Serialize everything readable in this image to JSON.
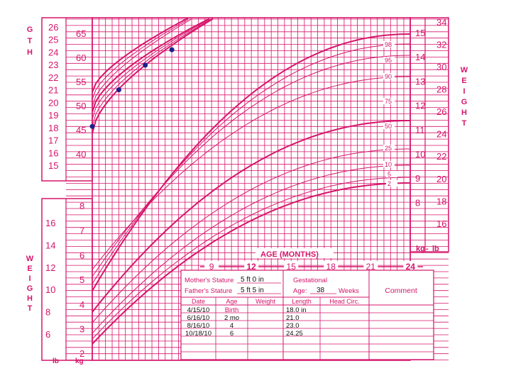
{
  "chart_data": {
    "type": "line",
    "title": "",
    "colors": {
      "ink": "#d6156b",
      "grid": "#d6156b",
      "points": "#1d1f8c",
      "bg": "#ffffff"
    },
    "left_axis_labels": {
      "length_side_letters": [
        "G",
        "T",
        "H"
      ],
      "weight_side_letters": [
        "W",
        "E",
        "I",
        "G",
        "H",
        "T"
      ],
      "lb": "lb",
      "kg": "kg"
    },
    "right_axis_labels": {
      "weight_letters": [
        "W",
        "E",
        "I",
        "G",
        "H",
        "T"
      ],
      "kg": "kg",
      "lb": "lb"
    },
    "x_axis": {
      "label": "AGE (MONTHS)",
      "ticks": [
        "9",
        "12",
        "15",
        "18",
        "21",
        "24"
      ]
    },
    "length_cm": {
      "inner_ticks": [
        "65",
        "60",
        "55",
        "50",
        "45",
        "40"
      ],
      "inch_ticks": [
        "26",
        "25",
        "24",
        "23",
        "22",
        "21",
        "20",
        "19",
        "18",
        "17",
        "16",
        "15"
      ],
      "points": [
        {
          "age_months": 0,
          "length_cm": 45.7
        },
        {
          "age_months": 2,
          "length_cm": 53.3
        },
        {
          "age_months": 4,
          "length_cm": 58.4
        },
        {
          "age_months": 6,
          "length_cm": 61.6
        }
      ]
    },
    "weight_left": {
      "kg_ticks": [
        "8",
        "7",
        "6",
        "5",
        "4",
        "3",
        "2"
      ],
      "lb_ticks": [
        "16",
        "14",
        "12",
        "10",
        "8",
        "6"
      ]
    },
    "weight_right": {
      "kg_ticks": [
        "15",
        "14",
        "13",
        "12",
        "11",
        "10",
        "9",
        "8"
      ],
      "lb_ticks": [
        "34",
        "32",
        "30",
        "28",
        "26",
        "24",
        "22",
        "20",
        "18",
        "16"
      ]
    },
    "percentiles": [
      "98",
      "95",
      "90",
      "75",
      "50",
      "25",
      "10",
      "5",
      "2"
    ]
  },
  "record": {
    "mothers_stature_label": "Mother's Stature",
    "mothers_stature_value": "5 ft 0 in",
    "fathers_stature_label": "Father's Stature",
    "fathers_stature_value": "5 ft 5 in",
    "gestational_label": "Gestational",
    "age_label": "Age:",
    "age_value": "38",
    "weeks_label": "Weeks",
    "comment_label": "Comment",
    "headers": [
      "Date",
      "Age",
      "Weight",
      "Length",
      "Head Circ."
    ],
    "rows": [
      [
        "4/15/10",
        "Birth",
        "",
        "18.0 in",
        ""
      ],
      [
        "6/16/10",
        "2 mo",
        "",
        "21.0",
        ""
      ],
      [
        "8/16/10",
        "4",
        "",
        "23.0",
        ""
      ],
      [
        "10/18/10",
        "6",
        "",
        "24.25",
        ""
      ]
    ]
  }
}
